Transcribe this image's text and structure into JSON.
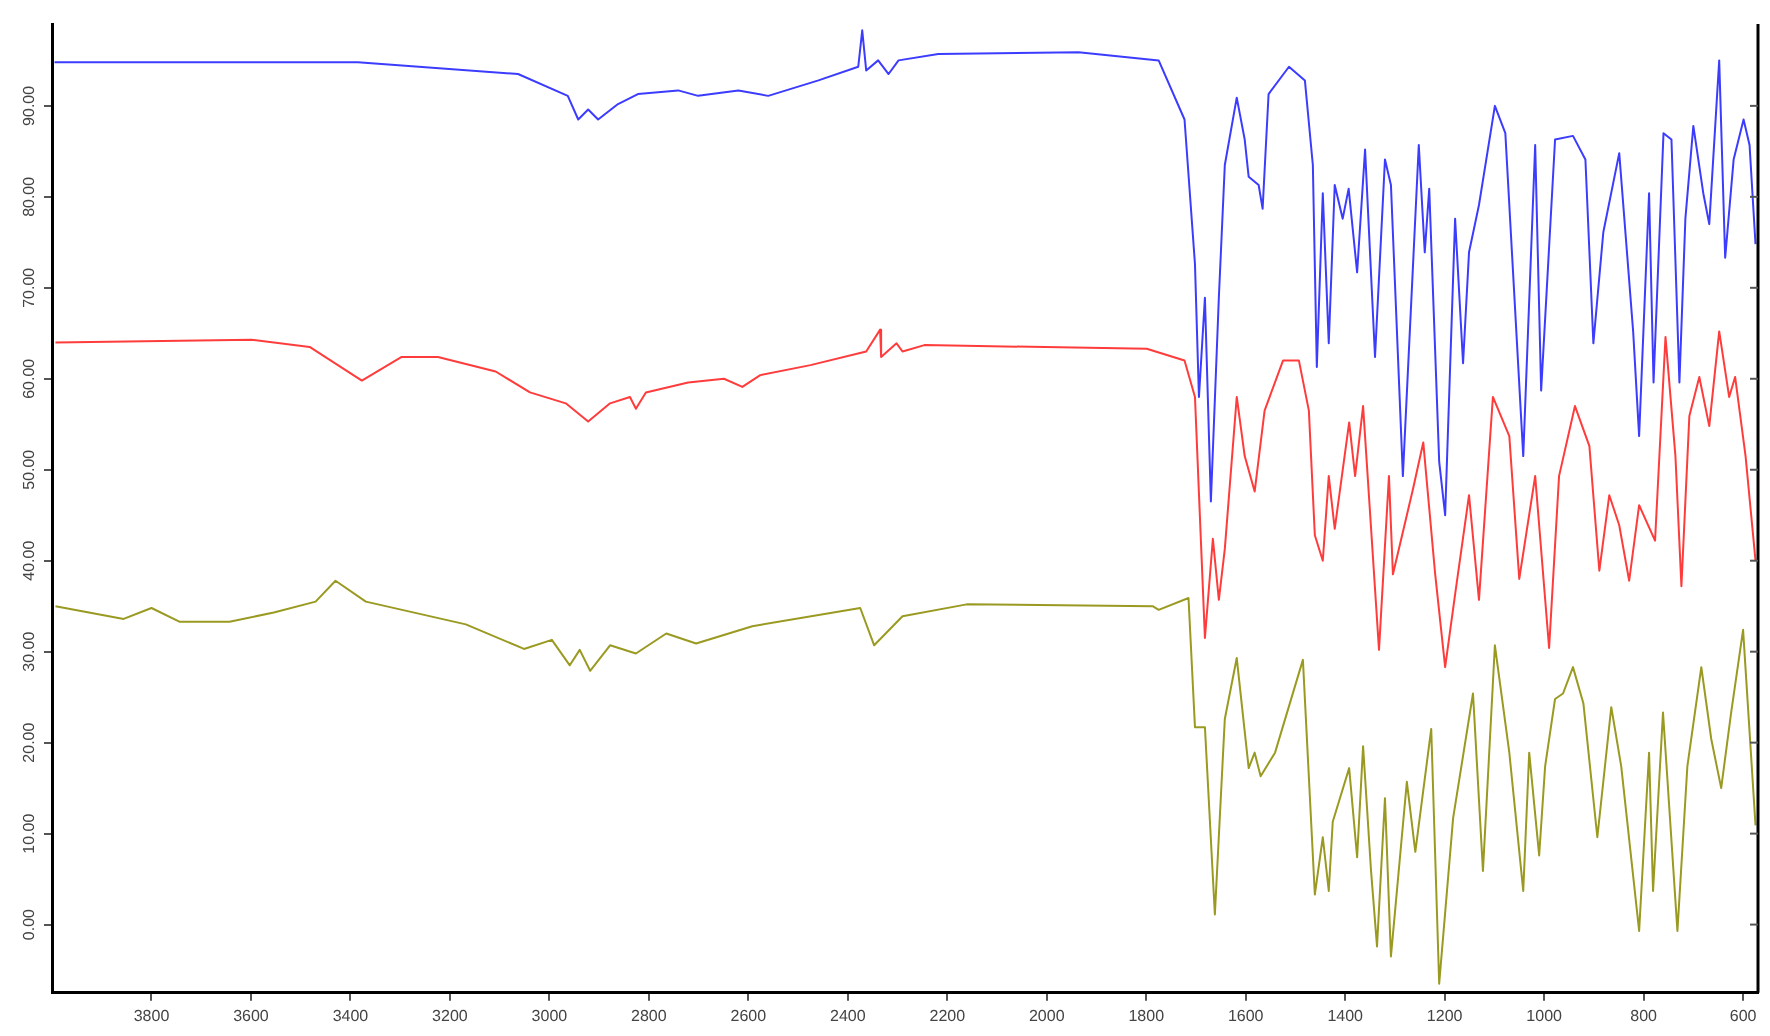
{
  "chart_data": {
    "type": "line",
    "marker": "none",
    "line_style": "solid",
    "grid": false,
    "legend": false,
    "xlim": [
      4000,
      570
    ],
    "ylim": [
      -7.5,
      99
    ],
    "xticks": [
      3800,
      3600,
      3400,
      3200,
      3000,
      2800,
      2600,
      2400,
      2200,
      2000,
      1800,
      1600,
      1400,
      1200,
      1000,
      800,
      600
    ],
    "yticks": [
      {
        "value": 0,
        "label": "0.00"
      },
      {
        "value": 10,
        "label": "10.00"
      },
      {
        "value": 20,
        "label": "20.00"
      },
      {
        "value": 30,
        "label": "30.00"
      },
      {
        "value": 40,
        "label": "40.00"
      },
      {
        "value": 50,
        "label": "50.00"
      },
      {
        "value": 60,
        "label": "60.00"
      },
      {
        "value": 70,
        "label": "70.00"
      },
      {
        "value": 80,
        "label": "80.00"
      },
      {
        "value": 90,
        "label": "90.00"
      }
    ],
    "series": [
      {
        "color": "#3c3cff",
        "x": [
          3995,
          3385,
          3063,
          2963,
          2942,
          2922,
          2902,
          2862,
          2822,
          2741,
          2701,
          2620,
          2560,
          2459,
          2379,
          2371,
          2363,
          2339,
          2318,
          2298,
          2218,
          1936,
          1775,
          1723,
          1702,
          1694,
          1682,
          1670,
          1654,
          1642,
          1618,
          1602,
          1594,
          1574,
          1566,
          1554,
          1513,
          1481,
          1465,
          1457,
          1445,
          1433,
          1421,
          1405,
          1393,
          1376,
          1360,
          1340,
          1320,
          1308,
          1284,
          1252,
          1240,
          1231,
          1211,
          1199,
          1179,
          1163,
          1151,
          1131,
          1099,
          1078,
          1042,
          1018,
          1006,
          978,
          942,
          917,
          901,
          881,
          849,
          821,
          809,
          789,
          780,
          760,
          744,
          728,
          716,
          700,
          680,
          668,
          648,
          636,
          619,
          599,
          587,
          575
        ],
        "values": [
          94.8,
          94.8,
          93.5,
          91.1,
          88.5,
          89.6,
          88.5,
          90.2,
          91.3,
          91.7,
          91.1,
          91.7,
          91.1,
          92.8,
          94.3,
          98.3,
          93.9,
          95.0,
          93.5,
          95.0,
          95.7,
          95.9,
          95.0,
          88.5,
          72.6,
          58.0,
          68.9,
          46.5,
          68.9,
          83.5,
          90.9,
          86.3,
          82.2,
          81.3,
          78.7,
          91.3,
          94.3,
          92.8,
          83.5,
          61.3,
          80.4,
          63.9,
          81.3,
          77.6,
          80.9,
          71.7,
          85.2,
          62.4,
          84.1,
          81.3,
          49.3,
          85.7,
          73.9,
          80.9,
          50.9,
          45.0,
          77.6,
          61.7,
          73.9,
          79.1,
          90.0,
          87.0,
          51.5,
          85.7,
          58.7,
          86.3,
          86.7,
          84.1,
          63.9,
          76.1,
          84.8,
          65.2,
          53.7,
          80.4,
          59.6,
          87.0,
          86.3,
          59.6,
          77.6,
          87.8,
          80.4,
          77.0,
          95.0,
          73.3,
          84.1,
          88.5,
          85.7,
          74.8
        ]
      },
      {
        "color": "#ff3c3c",
        "x": [
          3993,
          3599,
          3482,
          3377,
          3297,
          3224,
          3108,
          3039,
          2967,
          2922,
          2878,
          2838,
          2826,
          2806,
          2721,
          2649,
          2612,
          2576,
          2475,
          2363,
          2335,
          2333,
          2302,
          2290,
          2246,
          1799,
          1723,
          1702,
          1682,
          1666,
          1654,
          1642,
          1618,
          1602,
          1582,
          1562,
          1525,
          1493,
          1473,
          1461,
          1445,
          1433,
          1421,
          1392,
          1380,
          1364,
          1332,
          1312,
          1304,
          1264,
          1243,
          1219,
          1199,
          1179,
          1151,
          1131,
          1103,
          1070,
          1050,
          1018,
          990,
          970,
          938,
          909,
          889,
          869,
          849,
          829,
          809,
          777,
          756,
          736,
          724,
          708,
          688,
          668,
          648,
          628,
          616,
          595,
          575
        ],
        "values": [
          64.0,
          64.3,
          63.5,
          59.8,
          62.4,
          62.4,
          60.8,
          58.5,
          57.3,
          55.3,
          57.3,
          58.0,
          56.7,
          58.5,
          59.6,
          60.0,
          59.1,
          60.4,
          61.5,
          63.0,
          65.4,
          62.4,
          63.9,
          63.0,
          63.7,
          63.3,
          62.0,
          58.0,
          31.5,
          42.4,
          35.7,
          41.3,
          58.0,
          51.5,
          47.6,
          56.5,
          62.0,
          62.0,
          56.5,
          42.8,
          40.0,
          49.3,
          43.5,
          55.2,
          49.3,
          57.0,
          30.2,
          49.3,
          38.5,
          47.8,
          53.0,
          38.5,
          28.3,
          36.3,
          47.2,
          35.7,
          58.0,
          53.7,
          38.0,
          49.3,
          30.4,
          49.3,
          57.0,
          52.6,
          38.9,
          47.2,
          43.9,
          37.8,
          46.1,
          42.2,
          64.6,
          51.5,
          37.2,
          55.9,
          60.2,
          54.8,
          65.2,
          58.0,
          60.2,
          51.5,
          40.0
        ]
      },
      {
        "color": "#9a9a22",
        "x": [
          3993,
          3856,
          3800,
          3744,
          3643,
          3554,
          3470,
          3430,
          3369,
          3168,
          3051,
          2995,
          2959,
          2939,
          2918,
          2878,
          2826,
          2765,
          2705,
          2592,
          2375,
          2347,
          2290,
          2161,
          1787,
          1775,
          1715,
          1702,
          1682,
          1662,
          1642,
          1618,
          1594,
          1582,
          1570,
          1541,
          1485,
          1461,
          1445,
          1433,
          1425,
          1392,
          1376,
          1364,
          1348,
          1336,
          1320,
          1308,
          1276,
          1259,
          1227,
          1211,
          1183,
          1143,
          1123,
          1099,
          1070,
          1042,
          1030,
          1010,
          998,
          978,
          962,
          942,
          921,
          893,
          865,
          845,
          809,
          789,
          781,
          761,
          732,
          712,
          684,
          664,
          644,
          624,
          600,
          575
        ],
        "values": [
          35.0,
          33.6,
          34.8,
          33.3,
          33.3,
          34.3,
          35.5,
          37.8,
          35.5,
          33.0,
          30.3,
          31.3,
          28.5,
          30.2,
          27.9,
          30.7,
          29.8,
          32.0,
          30.9,
          32.8,
          34.8,
          30.7,
          33.9,
          35.2,
          35.0,
          34.6,
          35.9,
          21.7,
          21.7,
          1.1,
          22.6,
          29.3,
          17.2,
          18.9,
          16.3,
          18.9,
          29.1,
          3.3,
          9.6,
          3.7,
          11.3,
          17.2,
          7.4,
          19.6,
          5.9,
          -2.4,
          13.9,
          -3.5,
          15.7,
          8.0,
          21.5,
          -6.5,
          11.7,
          25.4,
          5.9,
          30.7,
          18.9,
          3.7,
          18.9,
          7.6,
          17.4,
          24.8,
          25.4,
          28.3,
          24.3,
          9.6,
          23.9,
          17.4,
          -0.7,
          18.9,
          3.7,
          23.3,
          -0.7,
          17.4,
          28.3,
          20.4,
          15.0,
          23.3,
          32.4,
          10.9
        ]
      }
    ]
  }
}
